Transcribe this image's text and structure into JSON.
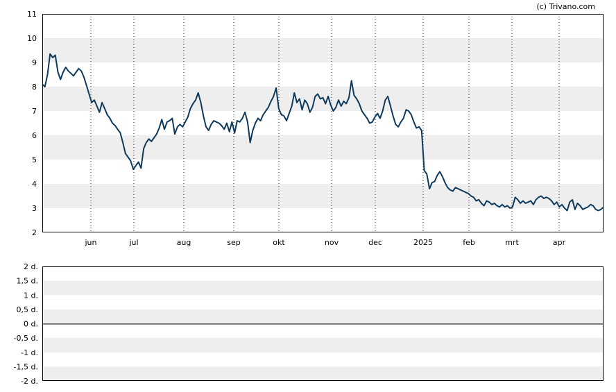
{
  "copyright": "(c) Trivano.com",
  "chart_data": [
    {
      "type": "line",
      "title": "",
      "xlabel": "",
      "ylabel": "",
      "ylim": [
        2,
        11
      ],
      "y_ticks": [
        2,
        3,
        4,
        5,
        6,
        7,
        8,
        9,
        10,
        11
      ],
      "x_labels": [
        "jun",
        "jul",
        "aug",
        "sep",
        "okt",
        "nov",
        "dec",
        "2025",
        "feb",
        "mrt",
        "apr"
      ],
      "grid": "dotted vertical lines at month starts, alternating horizontal bands",
      "series": [
        {
          "color": "#0d3a5c",
          "values": [
            8.1,
            8.0,
            8.5,
            9.35,
            9.2,
            9.3,
            8.6,
            8.3,
            8.6,
            8.8,
            8.65,
            8.55,
            8.45,
            8.6,
            8.75,
            8.65,
            8.4,
            8.05,
            7.7,
            7.35,
            7.45,
            7.2,
            6.95,
            7.35,
            7.1,
            6.85,
            6.7,
            6.5,
            6.4,
            6.25,
            6.1,
            5.7,
            5.25,
            5.1,
            4.95,
            4.6,
            4.75,
            4.9,
            4.65,
            5.45,
            5.7,
            5.85,
            5.75,
            5.9,
            6.05,
            6.3,
            6.65,
            6.25,
            6.55,
            6.6,
            6.7,
            6.05,
            6.35,
            6.45,
            6.35,
            6.55,
            6.75,
            7.1,
            7.3,
            7.45,
            7.75,
            7.35,
            6.8,
            6.35,
            6.2,
            6.45,
            6.6,
            6.55,
            6.5,
            6.4,
            6.25,
            6.5,
            6.15,
            6.55,
            6.1,
            6.6,
            6.55,
            6.7,
            6.95,
            6.55,
            5.7,
            6.2,
            6.5,
            6.7,
            6.6,
            6.85,
            7.0,
            7.15,
            7.4,
            7.6,
            7.95,
            7.1,
            6.85,
            6.8,
            6.6,
            6.9,
            7.2,
            7.75,
            7.35,
            7.5,
            7.05,
            7.45,
            7.3,
            6.95,
            7.15,
            7.6,
            7.7,
            7.5,
            7.55,
            7.3,
            7.6,
            7.25,
            7.0,
            7.15,
            7.45,
            7.2,
            7.4,
            7.3,
            7.55,
            8.25,
            7.65,
            7.5,
            7.3,
            7.0,
            6.85,
            6.7,
            6.5,
            6.55,
            6.75,
            6.9,
            6.7,
            7.0,
            7.45,
            7.6,
            7.2,
            6.8,
            6.45,
            6.35,
            6.55,
            6.7,
            7.05,
            7.0,
            6.85,
            6.55,
            6.3,
            6.35,
            6.2,
            4.55,
            4.4,
            3.8,
            4.05,
            4.1,
            4.35,
            4.5,
            4.3,
            4.05,
            3.85,
            3.75,
            3.7,
            3.85,
            3.8,
            3.75,
            3.7,
            3.65,
            3.6,
            3.5,
            3.45,
            3.3,
            3.35,
            3.2,
            3.1,
            3.3,
            3.25,
            3.15,
            3.2,
            3.1,
            3.05,
            3.15,
            3.05,
            3.1,
            3.0,
            3.05,
            3.45,
            3.35,
            3.2,
            3.3,
            3.2,
            3.25,
            3.3,
            3.15,
            3.35,
            3.45,
            3.5,
            3.4,
            3.45,
            3.4,
            3.3,
            3.15,
            3.25,
            3.05,
            3.15,
            3.0,
            2.9,
            3.25,
            3.35,
            2.95,
            3.2,
            3.1,
            2.95,
            3.0,
            3.05,
            3.15,
            3.1,
            2.95,
            2.9,
            2.95,
            3.05
          ]
        }
      ]
    },
    {
      "type": "line",
      "title": "",
      "xlabel": "",
      "ylabel": "",
      "ylim": [
        -2,
        2
      ],
      "y_tick_labels": [
        "2 d.",
        "1,5 d.",
        "1 d.",
        "0,5 d.",
        "0 d.",
        "-0,5 d.",
        "-1 d.",
        "-1,5 d.",
        "-2 d."
      ],
      "series": []
    }
  ]
}
